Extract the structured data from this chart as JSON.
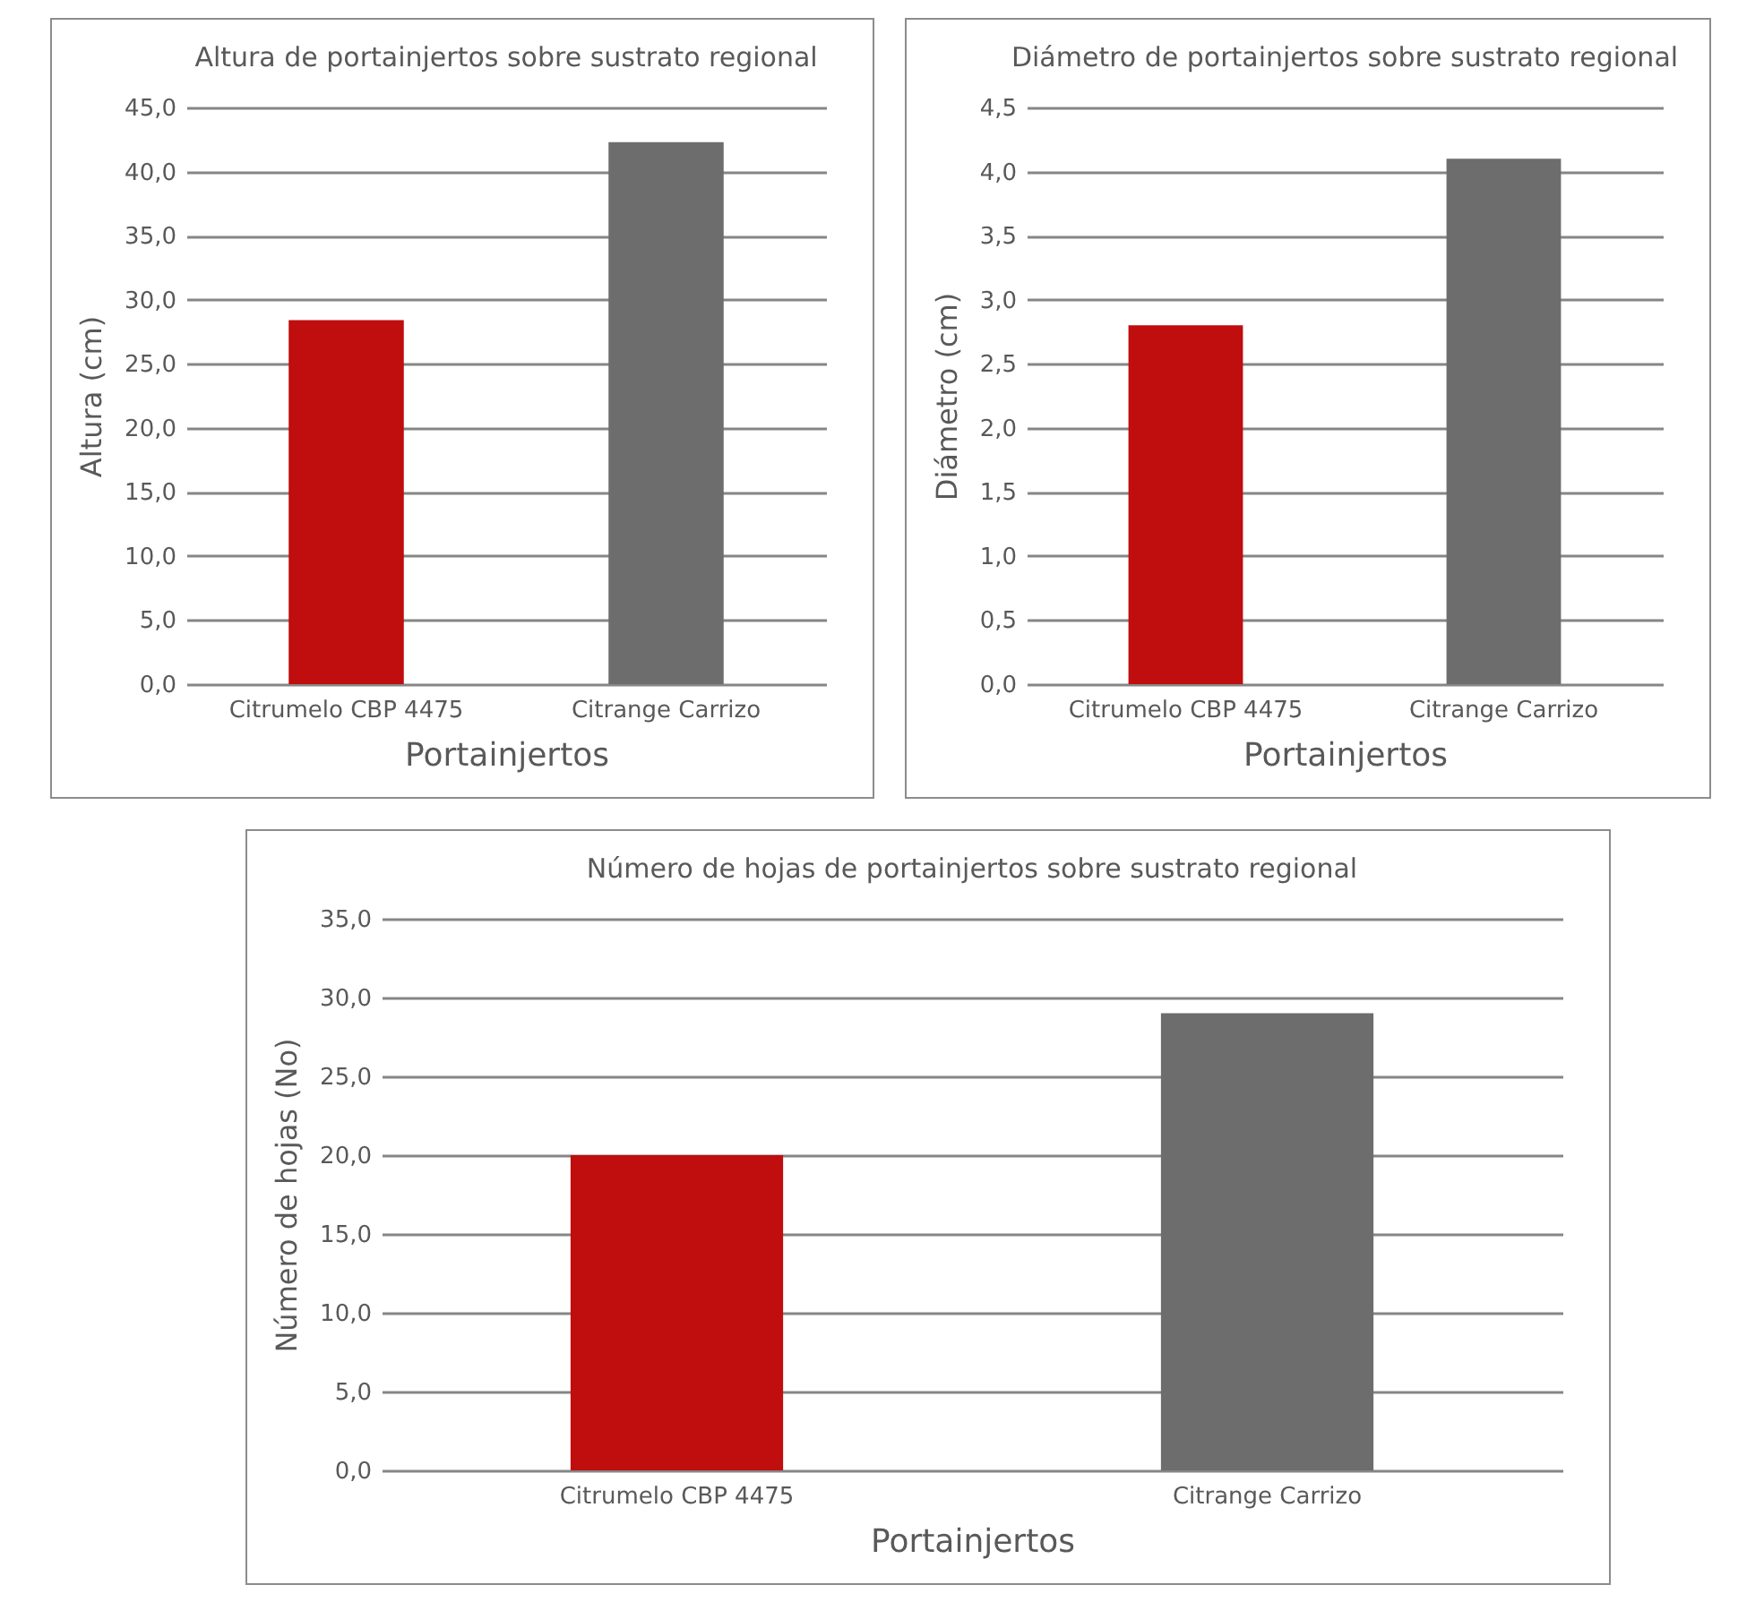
{
  "chart_data": [
    {
      "type": "bar",
      "title": "Altura de portainjertos sobre sustrato regional",
      "xlabel": "Portainjertos",
      "ylabel": "Altura (cm)",
      "categories": [
        "Citrumelo CBP 4475",
        "Citrange Carrizo"
      ],
      "values": [
        28.4,
        42.3
      ],
      "colors": [
        "#c00d0e",
        "#6d6d6d"
      ],
      "ylim": [
        0,
        45
      ],
      "yticks": [
        {
          "value": 0,
          "label": "0,0"
        },
        {
          "value": 5,
          "label": "5,0"
        },
        {
          "value": 10,
          "label": "10,0"
        },
        {
          "value": 15,
          "label": "15,0"
        },
        {
          "value": 20,
          "label": "20,0"
        },
        {
          "value": 25,
          "label": "25,0"
        },
        {
          "value": 30,
          "label": "30,0"
        },
        {
          "value": 35,
          "label": "35,0"
        },
        {
          "value": 40,
          "label": "40,0"
        },
        {
          "value": 45,
          "label": "45,0"
        }
      ],
      "grid": "y"
    },
    {
      "type": "bar",
      "title": "Diámetro de portainjertos sobre sustrato regional",
      "xlabel": "Portainjertos",
      "ylabel": "Diámetro (cm)",
      "categories": [
        "Citrumelo CBP 4475",
        "Citrange Carrizo"
      ],
      "values": [
        2.8,
        4.1
      ],
      "colors": [
        "#c00d0e",
        "#6d6d6d"
      ],
      "ylim": [
        0,
        4.5
      ],
      "yticks": [
        {
          "value": 0,
          "label": "0,0"
        },
        {
          "value": 0.5,
          "label": "0,5"
        },
        {
          "value": 1,
          "label": "1,0"
        },
        {
          "value": 1.5,
          "label": "1,5"
        },
        {
          "value": 2,
          "label": "2,0"
        },
        {
          "value": 2.5,
          "label": "2,5"
        },
        {
          "value": 3,
          "label": "3,0"
        },
        {
          "value": 3.5,
          "label": "3,5"
        },
        {
          "value": 4,
          "label": "4,0"
        },
        {
          "value": 4.5,
          "label": "4,5"
        }
      ],
      "grid": "y"
    },
    {
      "type": "bar",
      "title": "Número de hojas de portainjertos sobre sustrato regional",
      "xlabel": "Portainjertos",
      "ylabel": "Número de hojas (No)",
      "categories": [
        "Citrumelo CBP 4475",
        "Citrange Carrizo"
      ],
      "values": [
        20.0,
        29.0
      ],
      "colors": [
        "#c00d0e",
        "#6d6d6d"
      ],
      "ylim": [
        0,
        35
      ],
      "yticks": [
        {
          "value": 0,
          "label": "0,0"
        },
        {
          "value": 5,
          "label": "5,0"
        },
        {
          "value": 10,
          "label": "10,0"
        },
        {
          "value": 15,
          "label": "15,0"
        },
        {
          "value": 20,
          "label": "20,0"
        },
        {
          "value": 25,
          "label": "25,0"
        },
        {
          "value": 30,
          "label": "30,0"
        },
        {
          "value": 35,
          "label": "35,0"
        }
      ],
      "grid": "y"
    }
  ]
}
